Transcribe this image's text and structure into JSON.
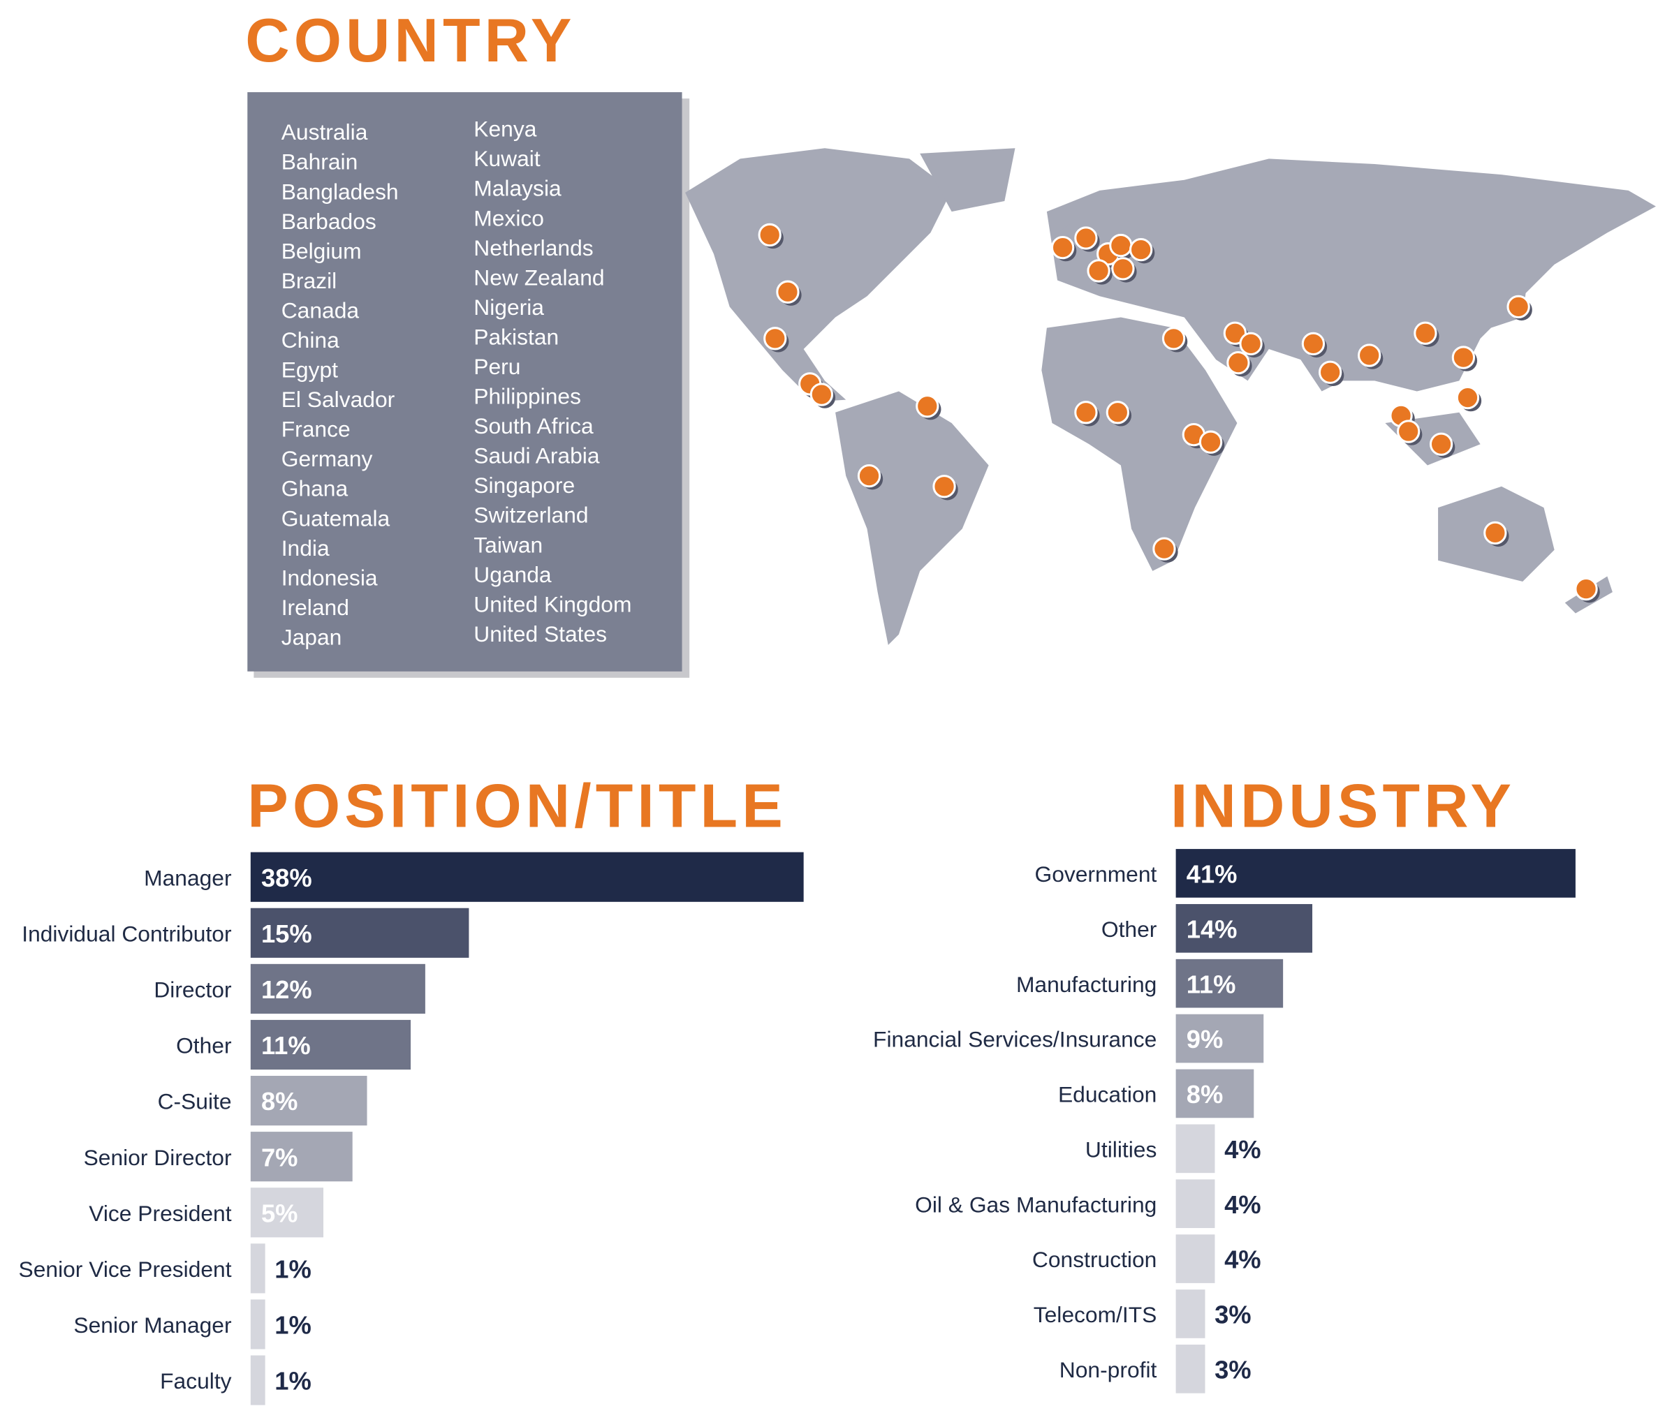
{
  "country": {
    "title": "COUNTRY",
    "countries": [
      "Australia",
      "Bahrain",
      "Bangladesh",
      "Barbados",
      "Belgium",
      "Brazil",
      "Canada",
      "China",
      "Egypt",
      "El Salvador",
      "France",
      "Germany",
      "Ghana",
      "Guatemala",
      "India",
      "Indonesia",
      "Ireland",
      "Japan",
      "Kenya",
      "Kuwait",
      "Malaysia",
      "Mexico",
      "Netherlands",
      "New Zealand",
      "Nigeria",
      "Pakistan",
      "Peru",
      "Philippines",
      "South Africa",
      "Saudi Arabia",
      "Singapore",
      "Switzerland",
      "Taiwan",
      "Uganda",
      "United Kingdom",
      "United States"
    ]
  },
  "chart_data": [
    {
      "type": "bar",
      "orientation": "horizontal",
      "title": "POSITION/TITLE",
      "categories": [
        "Manager",
        "Individual Contributor",
        "Director",
        "Other",
        "C-Suite",
        "Senior Director",
        "Vice President",
        "Senior Vice President",
        "Senior Manager",
        "Faculty"
      ],
      "values": [
        38,
        15,
        12,
        11,
        8,
        7,
        5,
        1,
        1,
        1
      ],
      "value_labels": [
        "38%",
        "15%",
        "12%",
        "11%",
        "8%",
        "7%",
        "5%",
        "1%",
        "1%",
        "1%"
      ],
      "colors": [
        "#1f2a48",
        "#4b526b",
        "#6f7488",
        "#6f7488",
        "#a4a7b4",
        "#a4a7b4",
        "#d5d6dd",
        "#d5d6dd",
        "#d5d6dd",
        "#d5d6dd"
      ]
    },
    {
      "type": "bar",
      "orientation": "horizontal",
      "title": "INDUSTRY",
      "categories": [
        "Government",
        "Other",
        "Manufacturing",
        "Financial Services/Insurance",
        "Education",
        "Utilities",
        "Oil & Gas Manufacturing",
        "Construction",
        "Telecom/ITS",
        "Non-profit"
      ],
      "values": [
        41,
        14,
        11,
        9,
        8,
        4,
        4,
        4,
        3,
        3
      ],
      "value_labels": [
        "41%",
        "14%",
        "11%",
        "9%",
        "8%",
        "4%",
        "4%",
        "4%",
        "3%",
        "3%"
      ],
      "colors": [
        "#1f2a48",
        "#4b526b",
        "#6f7488",
        "#a4a7b4",
        "#a4a7b4",
        "#d5d6dd",
        "#d5d6dd",
        "#d5d6dd",
        "#d5d6dd",
        "#d5d6dd"
      ]
    }
  ]
}
